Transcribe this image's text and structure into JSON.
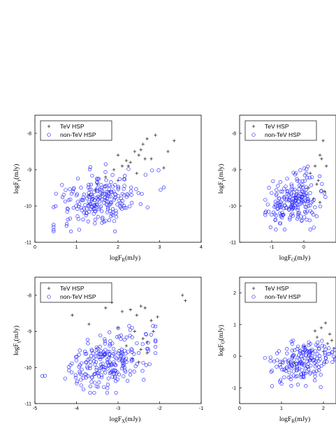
{
  "chart_data": [
    {
      "type": "scatter",
      "xlabel": "logF_R(mJy)",
      "ylabel": "logF_γ(mJy)",
      "xlim": [
        0,
        4
      ],
      "ylim": [
        -11,
        -7.5
      ],
      "xticks": [
        "0",
        "1",
        "2",
        "3",
        "4"
      ],
      "yticks": [
        "-8",
        "-9",
        "-10",
        "-11"
      ],
      "legend": [
        "TeV HSP",
        "non-TeV HSP"
      ],
      "legend_position": "top-left",
      "series": [
        {
          "name": "TeV HSP",
          "marker": "plus",
          "color": "#333333",
          "x": [
            1.5,
            1.7,
            1.9,
            2.0,
            2.1,
            2.2,
            2.3,
            2.4,
            2.5,
            2.55,
            2.6,
            2.65,
            2.7,
            2.8,
            2.9,
            3.1,
            3.2,
            3.35,
            1.6,
            1.8,
            2.0,
            2.25,
            2.45,
            1.3,
            1.45
          ],
          "y": [
            -9.4,
            -9.2,
            -9.0,
            -9.3,
            -8.9,
            -8.75,
            -8.8,
            -8.5,
            -8.6,
            -8.45,
            -8.3,
            -8.7,
            -8.15,
            -8.7,
            -8.05,
            -8.95,
            -8.5,
            -8.2,
            -9.7,
            -9.6,
            -8.6,
            -8.9,
            -9.1,
            -9.7,
            -9.55
          ],
          "seed": 11
        },
        {
          "name": "non-TeV HSP",
          "marker": "circle",
          "color": "#3333ff",
          "count": 230,
          "x_mean": 1.6,
          "x_sd": 0.5,
          "y_mean": -9.85,
          "y_sd": 0.38,
          "x_range": [
            0.45,
            3.1
          ],
          "y_range": [
            -10.7,
            -8.85
          ],
          "seed": 12
        }
      ]
    },
    {
      "type": "scatter",
      "xlabel": "logF_O(mJy)",
      "ylabel": "logF_γ(mJy)",
      "xlim": [
        -2,
        1
      ],
      "ylim": [
        -11,
        -7.5
      ],
      "xticks": [
        "-1",
        "0"
      ],
      "yticks": [
        "-8",
        "-9",
        "-10",
        "-11"
      ],
      "legend": [
        "TeV HSP",
        "non-TeV HSP"
      ],
      "legend_position": "top-left",
      "series": [
        {
          "name": "TeV HSP",
          "marker": "plus",
          "color": "#333333",
          "x": [
            0.2,
            0.35,
            0.5,
            0.55,
            0.6,
            0.65,
            0.4,
            0.3,
            0.45,
            0.7,
            0.15,
            0.5
          ],
          "y": [
            -9.1,
            -8.9,
            -8.6,
            -8.7,
            -8.2,
            -9.6,
            -9.4,
            -9.8,
            -9.3,
            -8.9,
            -9.5,
            -9.9
          ],
          "seed": 21
        },
        {
          "name": "non-TeV HSP",
          "marker": "circle",
          "color": "#3333ff",
          "count": 210,
          "x_mean": -0.3,
          "x_sd": 0.38,
          "y_mean": -9.85,
          "y_sd": 0.33,
          "x_range": [
            -1.2,
            0.9
          ],
          "y_range": [
            -10.65,
            -8.9
          ],
          "seed": 22
        }
      ]
    },
    {
      "type": "scatter",
      "xlabel": "logF_X(mJy)",
      "ylabel": "logF_γ(mJy)",
      "xlim": [
        -5,
        -1
      ],
      "ylim": [
        -11,
        -7.5
      ],
      "xticks": [
        "-5",
        "-4",
        "-3",
        "-2",
        "-1"
      ],
      "yticks": [
        "-8",
        "-9",
        "-10",
        "-11"
      ],
      "legend": [
        "TeV HSP",
        "non-TeV HSP"
      ],
      "legend_position": "top-left",
      "series": [
        {
          "name": "TeV HSP",
          "marker": "plus",
          "color": "#333333",
          "x": [
            -3.3,
            -3.15,
            -2.9,
            -2.7,
            -2.55,
            -2.45,
            -2.35,
            -2.2,
            -2.05,
            -1.45,
            -1.38,
            -2.6,
            -3.0,
            -2.4,
            -2.8,
            -3.2,
            -2.5,
            -2.3,
            -4.1,
            -3.7,
            -2.65,
            -2.45,
            -2.3,
            -2.15
          ],
          "y": [
            -8.35,
            -8.2,
            -8.45,
            -8.4,
            -8.55,
            -8.3,
            -8.35,
            -8.7,
            -8.6,
            -8.0,
            -8.15,
            -9.0,
            -8.9,
            -9.2,
            -9.4,
            -9.7,
            -9.85,
            -9.6,
            -8.55,
            -8.8,
            -9.75,
            -9.5,
            -9.3,
            -9.0
          ],
          "seed": 31
        },
        {
          "name": "non-TeV HSP",
          "marker": "circle",
          "color": "#3333ff",
          "count": 240,
          "x_mean": -3.3,
          "x_sd": 0.55,
          "y_mean": -9.85,
          "y_sd": 0.38,
          "x_range": [
            -4.95,
            -2.1
          ],
          "y_range": [
            -10.7,
            -8.85
          ],
          "seed": 32
        }
      ]
    },
    {
      "type": "scatter",
      "xlabel": "logF_R(mJy)",
      "ylabel": "logF_O(mJy)",
      "xlim": [
        0,
        2.3
      ],
      "ylim": [
        -1.5,
        2.5
      ],
      "xticks": [
        "0",
        "1",
        "2"
      ],
      "yticks": [
        "2",
        "1",
        "0",
        "-1"
      ],
      "legend": [
        "TeV HSP",
        "non-TeV HSP"
      ],
      "legend_position": "top-left",
      "series": [
        {
          "name": "TeV HSP",
          "marker": "plus",
          "color": "#333333",
          "x": [
            1.3,
            1.55,
            1.7,
            1.85,
            1.95,
            2.05,
            2.1,
            2.2,
            2.25,
            1.8,
            2.15,
            2.0
          ],
          "y": [
            -0.2,
            0.3,
            0.1,
            0.6,
            0.9,
            1.05,
            0.4,
            0.5,
            0.25,
            0.8,
            0.7,
            0.15
          ],
          "seed": 41
        },
        {
          "name": "non-TeV HSP",
          "marker": "circle",
          "color": "#3333ff",
          "count": 190,
          "x_mean": 1.5,
          "x_sd": 0.38,
          "y_mean": -0.15,
          "y_sd": 0.35,
          "x_range": [
            0.45,
            2.28
          ],
          "y_range": [
            -1.0,
            1.1
          ],
          "seed": 42
        }
      ]
    }
  ]
}
